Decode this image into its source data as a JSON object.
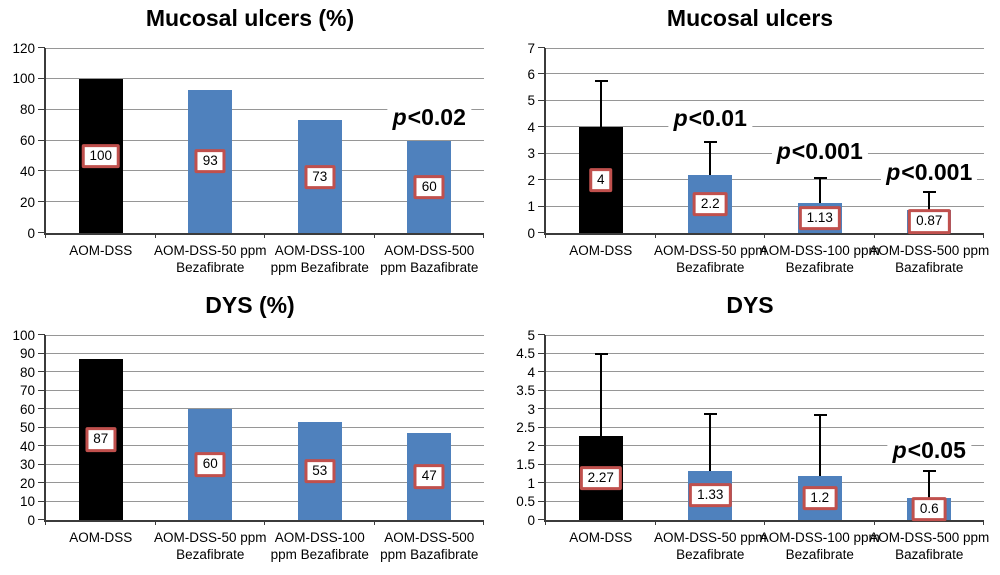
{
  "figure": {
    "background": "#ffffff"
  },
  "colors": {
    "bar_black": "#000000",
    "bar_blue": "#4F81BD",
    "value_box_border": "#C0504D",
    "gridline": "#969696",
    "axis": "#3B3B3B",
    "error_bar": "#000000",
    "text": "#000000"
  },
  "chart_data": [
    {
      "type": "bar",
      "title": "Mucosal ulcers (%)",
      "xlabel": "",
      "ylabel": "",
      "ylim": [
        0,
        120
      ],
      "yticks": [
        "0",
        "20",
        "40",
        "60",
        "80",
        "100",
        "120"
      ],
      "grid": true,
      "legend": null,
      "categories": [
        [
          "AOM-DSS"
        ],
        [
          "AOM-DSS-50 ppm",
          "Bezafibrate"
        ],
        [
          "AOM-DSS-100",
          "ppm Bezafibrate"
        ],
        [
          "AOM-DSS-500",
          "ppm Bazafibrate"
        ]
      ],
      "values": [
        100,
        93,
        73,
        60
      ],
      "value_labels": [
        "100",
        "93",
        "73",
        "60"
      ],
      "bar_colors": [
        "bar_black",
        "bar_blue",
        "bar_blue",
        "bar_blue"
      ],
      "error_top": [],
      "annotations": [
        {
          "text": "p<0.02",
          "bar_index": 3,
          "y_value": 75
        }
      ]
    },
    {
      "type": "bar",
      "title": "Mucosal ulcers",
      "xlabel": "",
      "ylabel": "",
      "ylim": [
        0,
        7
      ],
      "yticks": [
        "0",
        "1",
        "2",
        "3",
        "4",
        "5",
        "6",
        "7"
      ],
      "grid": true,
      "legend": null,
      "categories": [
        [
          "AOM-DSS"
        ],
        [
          "AOM-DSS-50 ppm",
          "Bezafibrate"
        ],
        [
          "AOM-DSS-100 ppm",
          "Bezafibrate"
        ],
        [
          "AOM-DSS-500 ppm",
          "Bazafibrate"
        ]
      ],
      "values": [
        4,
        2.2,
        1.13,
        0.87
      ],
      "value_labels": [
        "4",
        "2.2",
        "1.13",
        "0.87"
      ],
      "bar_colors": [
        "bar_black",
        "bar_blue",
        "bar_blue",
        "bar_blue"
      ],
      "error_top": [
        5.7,
        3.4,
        2.05,
        1.5
      ],
      "annotations": [
        {
          "text": "p<0.01",
          "bar_index": 1,
          "y_value": 4.35
        },
        {
          "text": "p<0.001",
          "bar_index": 2,
          "y_value": 3.1
        },
        {
          "text": "p<0.001",
          "bar_index": 3,
          "y_value": 2.3
        }
      ]
    },
    {
      "type": "bar",
      "title": "DYS (%)",
      "xlabel": "",
      "ylabel": "",
      "ylim": [
        0,
        100
      ],
      "yticks": [
        "0",
        "10",
        "20",
        "30",
        "40",
        "50",
        "60",
        "70",
        "80",
        "90",
        "100"
      ],
      "grid": true,
      "legend": null,
      "categories": [
        [
          "AOM-DSS"
        ],
        [
          "AOM-DSS-50 ppm",
          "Bezafibrate"
        ],
        [
          "AOM-DSS-100",
          "ppm Bezafibrate"
        ],
        [
          "AOM-DSS-500",
          "ppm Bazafibrate"
        ]
      ],
      "values": [
        87,
        60,
        53,
        47
      ],
      "value_labels": [
        "87",
        "60",
        "53",
        "47"
      ],
      "bar_colors": [
        "bar_black",
        "bar_blue",
        "bar_blue",
        "bar_blue"
      ],
      "error_top": [],
      "annotations": []
    },
    {
      "type": "bar",
      "title": "DYS",
      "xlabel": "",
      "ylabel": "",
      "ylim": [
        0,
        5
      ],
      "yticks": [
        "0",
        "0.5",
        "1",
        "1.5",
        "2",
        "2.5",
        "3",
        "3.5",
        "4",
        "4.5",
        "5"
      ],
      "grid": true,
      "legend": null,
      "categories": [
        [
          "AOM-DSS"
        ],
        [
          "AOM-DSS-50 ppm",
          "Bezafibrate"
        ],
        [
          "AOM-DSS-100 ppm",
          "Bezafibrate"
        ],
        [
          "AOM-DSS-500 ppm",
          "Bazafibrate"
        ]
      ],
      "values": [
        2.27,
        1.33,
        1.2,
        0.6
      ],
      "value_labels": [
        "2.27",
        "1.33",
        "1.2",
        "0.6"
      ],
      "bar_colors": [
        "bar_black",
        "bar_blue",
        "bar_blue",
        "bar_blue"
      ],
      "error_top": [
        4.45,
        2.83,
        2.8,
        1.3
      ],
      "annotations": [
        {
          "text": "p<0.05",
          "bar_index": 3,
          "y_value": 1.9
        }
      ]
    }
  ]
}
